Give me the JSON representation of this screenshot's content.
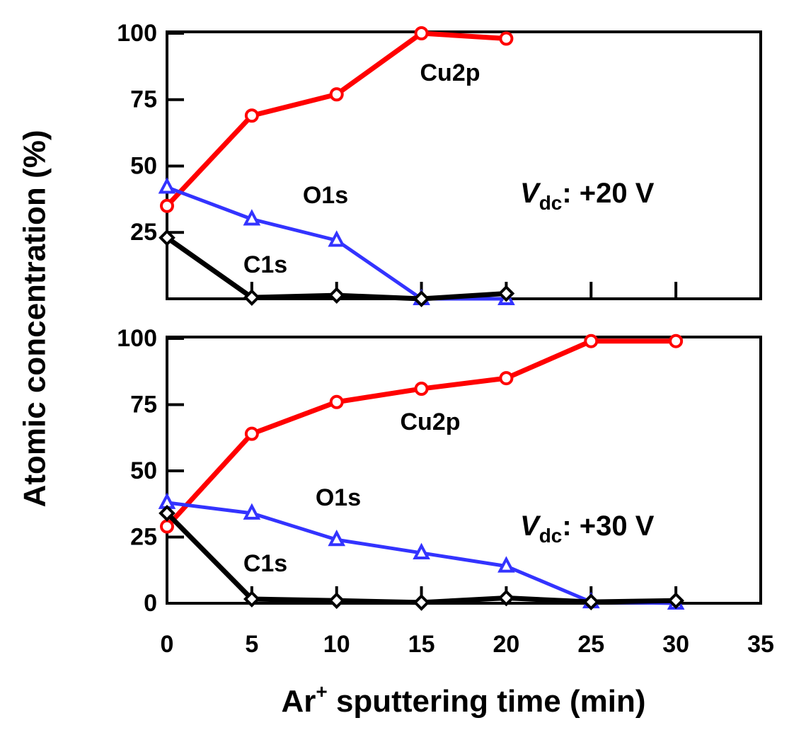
{
  "ylabel": "Atomic concentration (%)",
  "xlabel": {
    "text": "Ar",
    "superscript": "+",
    "rest": " sputtering time (min)"
  },
  "chart_data": [
    {
      "type": "line",
      "x": [
        0,
        5,
        10,
        15,
        20
      ],
      "xlim": [
        0,
        35
      ],
      "xticks": [
        0,
        5,
        10,
        15,
        20,
        25,
        30,
        35
      ],
      "ylim": [
        0,
        100
      ],
      "yticks": [
        25,
        50,
        75,
        100
      ],
      "series": [
        {
          "name": "Cu2p",
          "color": "#ff0000",
          "marker": "circle",
          "values": [
            35,
            69,
            77,
            100,
            98
          ]
        },
        {
          "name": "O1s",
          "color": "#3333ff",
          "marker": "triangle",
          "values": [
            42,
            30,
            22,
            0,
            0
          ]
        },
        {
          "name": "C1s",
          "color": "#000000",
          "marker": "diamond",
          "values": [
            23,
            0.5,
            1.3,
            0,
            2
          ]
        }
      ],
      "annotation": {
        "symbol": "V",
        "subscript": "dc",
        "text": ": +20 V"
      }
    },
    {
      "type": "line",
      "x": [
        0,
        5,
        10,
        15,
        20,
        25,
        30
      ],
      "xlim": [
        0,
        35
      ],
      "xticks": [
        0,
        5,
        10,
        15,
        20,
        25,
        30,
        35
      ],
      "ylim": [
        0,
        100
      ],
      "yticks": [
        0,
        25,
        50,
        75,
        100
      ],
      "series": [
        {
          "name": "Cu2p",
          "color": "#ff0000",
          "marker": "circle",
          "values": [
            29,
            64,
            76,
            81,
            85,
            99,
            99
          ]
        },
        {
          "name": "O1s",
          "color": "#3333ff",
          "marker": "triangle",
          "values": [
            38,
            34,
            24,
            19,
            14,
            0.5,
            0
          ]
        },
        {
          "name": "C1s",
          "color": "#000000",
          "marker": "diamond",
          "values": [
            34,
            1.6,
            1,
            0.3,
            2,
            0.5,
            1
          ]
        }
      ],
      "annotation": {
        "symbol": "V",
        "subscript": "dc",
        "text": ": +30 V"
      }
    }
  ]
}
